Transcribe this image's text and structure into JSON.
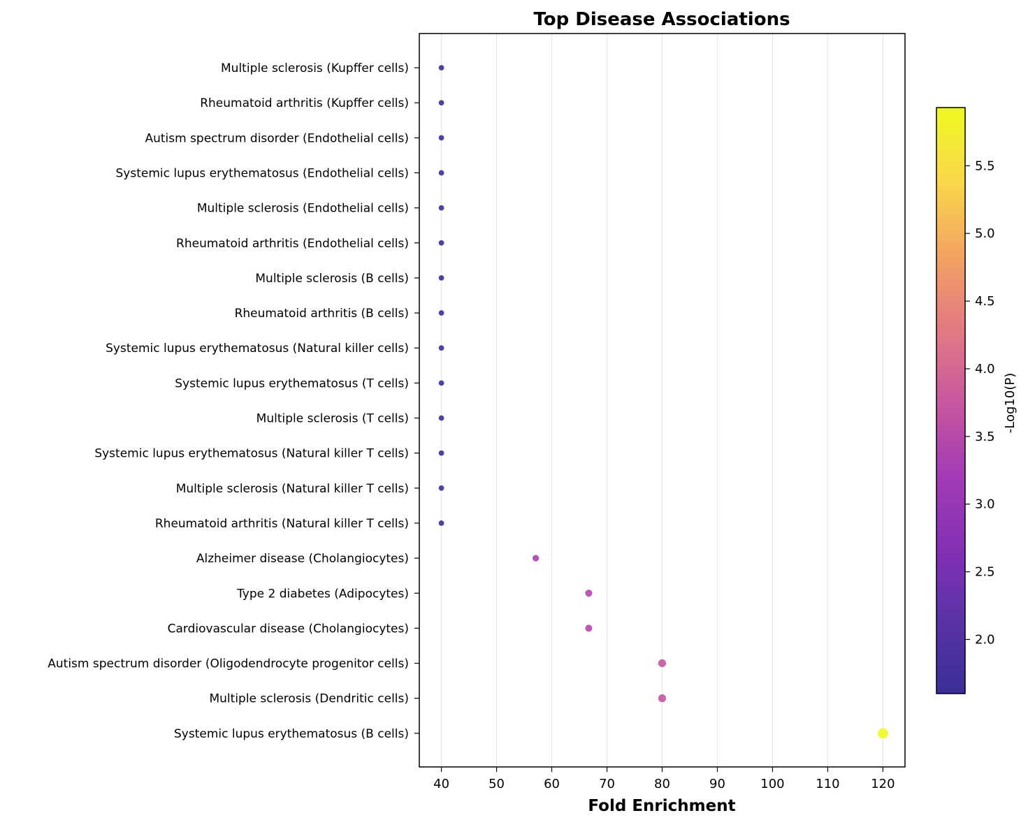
{
  "chart_data": {
    "type": "scatter",
    "title": "Top Disease Associations",
    "xlabel": "Fold Enrichment",
    "ylabel": "",
    "xlim": [
      36,
      124
    ],
    "x_ticks": [
      40,
      50,
      60,
      70,
      80,
      90,
      100,
      110,
      120
    ],
    "x_tick_labels": [
      "40",
      "50",
      "60",
      "70",
      "80",
      "90",
      "100",
      "110",
      "120"
    ],
    "grid": "x-axis vertical lines",
    "colormap": "plasma",
    "colorbar": {
      "label": "-Log10(P)",
      "range": [
        1.6,
        5.93
      ],
      "ticks": [
        2.0,
        2.5,
        3.0,
        3.5,
        4.0,
        4.5,
        5.0,
        5.5
      ],
      "tick_labels": [
        "2.0",
        "2.5",
        "3.0",
        "3.5",
        "4.0",
        "4.5",
        "5.0",
        "5.5"
      ],
      "colors": [
        "#3a2f96",
        "#5a32a8",
        "#8530b5",
        "#a43cb5",
        "#c8589f",
        "#e37b82",
        "#f4a462",
        "#f9d84a",
        "#f0f921"
      ]
    },
    "categories": [
      "Multiple sclerosis (Kupffer cells)",
      "Rheumatoid arthritis (Kupffer cells)",
      "Autism spectrum disorder (Endothelial cells)",
      "Systemic lupus erythematosus (Endothelial cells)",
      "Multiple sclerosis (Endothelial cells)",
      "Rheumatoid arthritis (Endothelial cells)",
      "Multiple sclerosis (B cells)",
      "Rheumatoid arthritis (B cells)",
      "Systemic lupus erythematosus (Natural killer cells)",
      "Systemic lupus erythematosus (T cells)",
      "Multiple sclerosis (T cells)",
      "Systemic lupus erythematosus (Natural killer T cells)",
      "Multiple sclerosis (Natural killer T cells)",
      "Rheumatoid arthritis (Natural killer T cells)",
      "Alzheimer disease (Cholangiocytes)",
      "Type 2 diabetes (Adipocytes)",
      "Cardiovascular disease (Cholangiocytes)",
      "Autism spectrum disorder (Oligodendrocyte progenitor cells)",
      "Multiple sclerosis (Dendritic cells)",
      "Systemic lupus erythematosus (B cells)"
    ],
    "fold_enrichment": [
      40,
      40,
      40,
      40,
      40,
      40,
      40,
      40,
      40,
      40,
      40,
      40,
      40,
      40,
      57.1,
      66.7,
      66.7,
      80,
      80,
      120
    ],
    "neg_log10_p": [
      1.6,
      1.6,
      1.6,
      1.6,
      1.6,
      1.6,
      1.6,
      1.6,
      1.6,
      1.6,
      1.6,
      1.6,
      1.6,
      1.6,
      3.3,
      3.45,
      3.45,
      3.7,
      3.7,
      5.93
    ]
  }
}
